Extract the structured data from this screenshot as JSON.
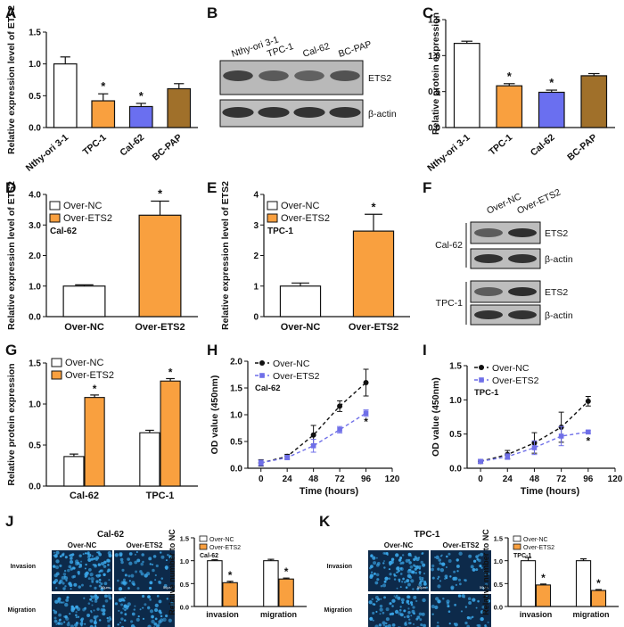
{
  "colors": {
    "white": "#ffffff",
    "orange": "#f9a03f",
    "blue": "#6a6ff0",
    "brown": "#a0702a",
    "ncline": "#111111",
    "ets2line": "#6f6fe8",
    "cell": "#0d2a4a",
    "dots": "#3aa6e8"
  },
  "panel_labels": [
    "A",
    "B",
    "C",
    "D",
    "E",
    "F",
    "G",
    "H",
    "I",
    "J",
    "K"
  ],
  "blots": {
    "B": {
      "lanes": [
        "Nthy-ori 3-1",
        "TPC-1",
        "Cal-62",
        "BC-PAP"
      ],
      "rows": [
        "ETS2",
        "β-actin"
      ]
    },
    "F": {
      "lanes": [
        "Over-NC",
        "Over-ETS2"
      ],
      "rows": [
        "ETS2",
        "β-actin",
        "ETS2",
        "β-actin"
      ],
      "groups": [
        "Cal-62",
        "TPC-1"
      ]
    }
  },
  "images": {
    "J": {
      "title": "Cal-62",
      "cols": [
        "Over-NC",
        "Over-ETS2"
      ],
      "rows": [
        "Invasion",
        "Migration"
      ],
      "scale": "50μm"
    },
    "K": {
      "title": "TPC-1",
      "cols": [
        "Over-NC",
        "Over-ETS2"
      ],
      "rows": [
        "Invasion",
        "Migration"
      ],
      "scale": "50μm"
    }
  },
  "chart_data": [
    {
      "id": "A",
      "type": "bar",
      "ylabel": "Relative expression level of ETS2",
      "ylim": [
        0,
        1.5
      ],
      "yticks": [
        "0.0",
        "0.5",
        "1.0",
        "1.5"
      ],
      "categories": [
        "Nthy-ori 3-1",
        "TPC-1",
        "Cal-62",
        "BC-PAP"
      ],
      "values": [
        1.0,
        0.42,
        0.33,
        0.61
      ],
      "errors": [
        0.11,
        0.11,
        0.05,
        0.08
      ],
      "colors": [
        "#ffffff",
        "#f9a03f",
        "#6a6ff0",
        "#a0702a"
      ],
      "stars": [
        "",
        "*",
        "*",
        ""
      ]
    },
    {
      "id": "C",
      "type": "bar",
      "ylabel": "Relative protein expression",
      "ylim": [
        0,
        1.5
      ],
      "yticks": [
        "0.0",
        "0.5",
        "1.0",
        "1.5"
      ],
      "categories": [
        "Nthy-ori 3-1",
        "TPC-1",
        "Cal-62",
        "BC-PAP"
      ],
      "values": [
        1.17,
        0.58,
        0.49,
        0.72
      ],
      "errors": [
        0.03,
        0.03,
        0.03,
        0.03
      ],
      "colors": [
        "#ffffff",
        "#f9a03f",
        "#6a6ff0",
        "#a0702a"
      ],
      "stars": [
        "",
        "*",
        "*",
        ""
      ]
    },
    {
      "id": "D",
      "type": "bar",
      "ylabel": "Relative expression level of ETS2",
      "ylim": [
        0,
        4
      ],
      "yticks": [
        "0.0",
        "1.0",
        "2.0",
        "3.0",
        "4.0"
      ],
      "categories": [
        "Over-NC",
        "Over-ETS2"
      ],
      "values": [
        1.0,
        3.32
      ],
      "errors": [
        0.04,
        0.46
      ],
      "colors": [
        "#ffffff",
        "#f9a03f"
      ],
      "stars": [
        "",
        "*"
      ],
      "legend": [
        "Over-NC",
        "Over-ETS2"
      ],
      "subtitle": "Cal-62"
    },
    {
      "id": "E",
      "type": "bar",
      "ylabel": "Relative expression level of ETS2",
      "ylim": [
        0,
        4
      ],
      "yticks": [
        "0",
        "1",
        "2",
        "3",
        "4"
      ],
      "categories": [
        "Over-NC",
        "Over-ETS2"
      ],
      "values": [
        1.0,
        2.8
      ],
      "errors": [
        0.1,
        0.55
      ],
      "colors": [
        "#ffffff",
        "#f9a03f"
      ],
      "stars": [
        "",
        "*"
      ],
      "legend": [
        "Over-NC",
        "Over-ETS2"
      ],
      "subtitle": "TPC-1"
    },
    {
      "id": "G",
      "type": "bar",
      "ylabel": "Relative protein expression",
      "ylim": [
        0,
        1.5
      ],
      "yticks": [
        "0.0",
        "0.5",
        "1.0",
        "1.5"
      ],
      "categories": [
        "Cal-62",
        "TPC-1"
      ],
      "series": [
        {
          "name": "Over-NC",
          "values": [
            0.36,
            0.65
          ],
          "errors": [
            0.03,
            0.03
          ],
          "color": "#ffffff"
        },
        {
          "name": "Over-ETS2",
          "values": [
            1.08,
            1.28
          ],
          "errors": [
            0.03,
            0.03
          ],
          "color": "#f9a03f"
        }
      ],
      "stars": [
        [
          "",
          ""
        ],
        [
          "*",
          "*"
        ]
      ]
    },
    {
      "id": "H",
      "type": "line",
      "ylabel": "OD value (450nm)",
      "xlabel": "Time (hours)",
      "xlim": [
        -12,
        120
      ],
      "ylim": [
        0,
        2
      ],
      "xticks": [
        0,
        24,
        48,
        72,
        96,
        120
      ],
      "yticks": [
        "0.0",
        "0.5",
        "1.0",
        "1.5",
        "2.0"
      ],
      "x": [
        0,
        24,
        48,
        72,
        96
      ],
      "subtitle": "Cal-62",
      "series": [
        {
          "name": "Over-NC",
          "values": [
            0.1,
            0.22,
            0.62,
            1.16,
            1.6
          ],
          "errors": [
            0.06,
            0.04,
            0.18,
            0.1,
            0.25
          ],
          "color": "#111111",
          "marker": "circle"
        },
        {
          "name": "Over-ETS2",
          "values": [
            0.1,
            0.2,
            0.42,
            0.72,
            1.03
          ],
          "errors": [
            0.05,
            0.04,
            0.12,
            0.06,
            0.06
          ],
          "color": "#6f6fe8",
          "marker": "square"
        }
      ],
      "star": "*"
    },
    {
      "id": "I",
      "type": "line",
      "ylabel": "OD value (450nm)",
      "xlabel": "Time (hours)",
      "xlim": [
        -12,
        120
      ],
      "ylim": [
        0,
        1.5
      ],
      "xticks": [
        0,
        24,
        48,
        72,
        96,
        120
      ],
      "yticks": [
        "0.0",
        "0.5",
        "1.0",
        "1.5"
      ],
      "x": [
        0,
        24,
        48,
        72,
        96
      ],
      "subtitle": "TPC-1",
      "series": [
        {
          "name": "Over-NC",
          "values": [
            0.1,
            0.2,
            0.37,
            0.6,
            0.98
          ],
          "errors": [
            0.03,
            0.06,
            0.15,
            0.22,
            0.07
          ],
          "color": "#111111",
          "marker": "circle"
        },
        {
          "name": "Over-ETS2",
          "values": [
            0.1,
            0.17,
            0.3,
            0.47,
            0.53
          ],
          "errors": [
            0.03,
            0.04,
            0.1,
            0.14,
            0.02
          ],
          "color": "#6f6fe8",
          "marker": "square"
        }
      ],
      "star": "*"
    },
    {
      "id": "Jc",
      "type": "bar",
      "ylabel": "Relative number to NC",
      "ylim": [
        0,
        1.5
      ],
      "yticks": [
        "0.0",
        "0.5",
        "1.0",
        "1.5"
      ],
      "categories": [
        "invasion",
        "migration"
      ],
      "series": [
        {
          "name": "Over-NC",
          "values": [
            1.0,
            1.0
          ],
          "errors": [
            0.02,
            0.03
          ],
          "color": "#ffffff"
        },
        {
          "name": "Over-ETS2",
          "values": [
            0.52,
            0.6
          ],
          "errors": [
            0.03,
            0.02
          ],
          "color": "#f9a03f"
        }
      ],
      "stars": [
        [
          "",
          ""
        ],
        [
          "*",
          "*"
        ]
      ],
      "subtitle": "Cal-62"
    },
    {
      "id": "Kc",
      "type": "bar",
      "ylabel": "Relative number to NC",
      "ylim": [
        0,
        1.5
      ],
      "yticks": [
        "0.0",
        "0.5",
        "1.0",
        "1.5"
      ],
      "categories": [
        "invasion",
        "migration"
      ],
      "series": [
        {
          "name": "Over-NC",
          "values": [
            1.0,
            1.0
          ],
          "errors": [
            0.07,
            0.04
          ],
          "color": "#ffffff"
        },
        {
          "name": "Over-ETS2",
          "values": [
            0.47,
            0.35
          ],
          "errors": [
            0.02,
            0.02
          ],
          "color": "#f9a03f"
        }
      ],
      "stars": [
        [
          "",
          ""
        ],
        [
          "*",
          "*"
        ]
      ],
      "subtitle": "TPC-1"
    }
  ]
}
